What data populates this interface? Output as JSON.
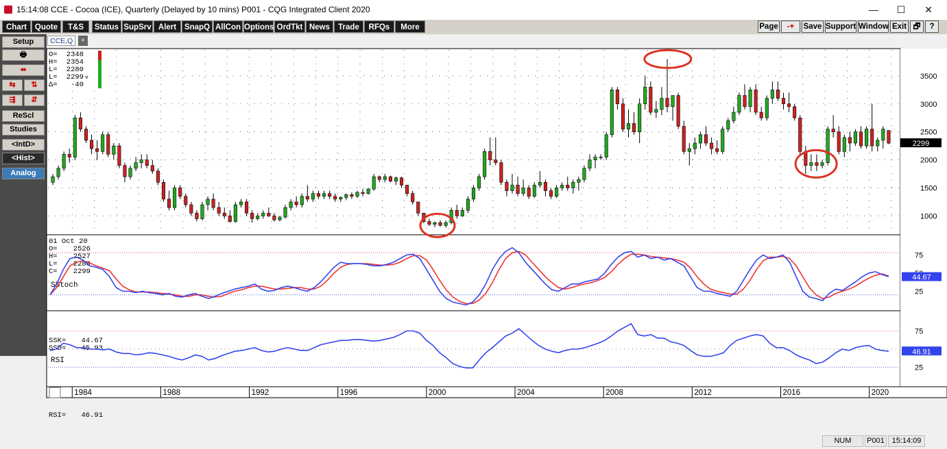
{
  "window": {
    "title": "15:14:08   CCE - Cocoa (ICE), Quarterly (Delayed by 10 mins)   P001 - CQG Integrated Client 2020",
    "minimize": "—",
    "maximize": "☐",
    "close": "✕"
  },
  "menu": {
    "left": [
      "Chart",
      "Quote",
      "T&S",
      "Status",
      "SupSrv",
      "Alert",
      "SnapQ",
      "AllCon",
      "Options",
      "OrdTkt",
      "News",
      "Trade",
      "RFQs",
      "More"
    ],
    "right": [
      "Page",
      "-+",
      "Save",
      "Support",
      "Window",
      "Exit",
      "🗗",
      "?"
    ]
  },
  "sidebar": {
    "setup": "Setup",
    "print_icon": "printer-icon",
    "rescl": "ReScl",
    "studies": "Studies",
    "intd": "<IntD>",
    "hist": "<Hist>",
    "analog": "Analog"
  },
  "tabs": {
    "active": "CCE,Q",
    "add": "+"
  },
  "price_box": {
    "labels": [
      "O=",
      "H=",
      "L=",
      "L=",
      "Δ="
    ],
    "values": [
      "2348",
      "2354",
      "2280",
      "2299",
      "-40"
    ],
    "suffix": "v"
  },
  "cursor_box": {
    "date": "01 Oct 20",
    "labels": [
      "O=",
      "H=",
      "L=",
      "C="
    ],
    "values": [
      "2526",
      "2527",
      "2280",
      "2299"
    ]
  },
  "price_axis": {
    "ticks": [
      "3500",
      "3000",
      "2500",
      "2000",
      "1500",
      "1000"
    ],
    "current": "2299"
  },
  "sstoch": {
    "title": "SStoch",
    "ticks": [
      "75",
      "50",
      "25"
    ],
    "current": "44.67",
    "readout_labels": [
      "SSK=",
      "SSD="
    ],
    "readout_values": [
      "44.67",
      "45.93"
    ]
  },
  "rsi": {
    "title": "RSI",
    "ticks": [
      "75",
      "50",
      "25"
    ],
    "current": "46.91",
    "readout_label": "RSI=",
    "readout_value": "46.91"
  },
  "time_axis": [
    "1984",
    "1988",
    "1992",
    "1996",
    "2000",
    "2004",
    "2008",
    "2012",
    "2016",
    "2020"
  ],
  "status": {
    "num": "NUM",
    "page": "P001",
    "time": "15:14:09"
  },
  "colors": {
    "up": "#22aa22",
    "down": "#cc2222",
    "stoch_fast": "#3344ee",
    "stoch_slow": "#ee3333",
    "highlight": "#dd3322"
  },
  "chart_data": {
    "type": "candlestick",
    "price_ylim": [
      700,
      3950
    ],
    "x_range": [
      1983.0,
      2021.25
    ],
    "candles": [
      [
        1983.0,
        1600,
        1750,
        1550,
        1700
      ],
      [
        1983.25,
        1700,
        1900,
        1650,
        1850
      ],
      [
        1983.5,
        1850,
        2150,
        1800,
        2100
      ],
      [
        1983.75,
        2100,
        2200,
        1950,
        2050
      ],
      [
        1984.0,
        2050,
        2800,
        2000,
        2750
      ],
      [
        1984.25,
        2750,
        2850,
        2500,
        2550
      ],
      [
        1984.5,
        2550,
        2600,
        2300,
        2350
      ],
      [
        1984.75,
        2350,
        2450,
        2100,
        2200
      ],
      [
        1985.0,
        2200,
        2350,
        2000,
        2150
      ],
      [
        1985.25,
        2150,
        2500,
        2100,
        2450
      ],
      [
        1985.5,
        2450,
        2500,
        2050,
        2100
      ],
      [
        1985.75,
        2100,
        2300,
        2000,
        2250
      ],
      [
        1986.0,
        2250,
        2300,
        1850,
        1900
      ],
      [
        1986.25,
        1900,
        1950,
        1600,
        1700
      ],
      [
        1986.5,
        1700,
        1900,
        1650,
        1850
      ],
      [
        1986.75,
        1850,
        2050,
        1800,
        1950
      ],
      [
        1987.0,
        1950,
        2100,
        1850,
        2000
      ],
      [
        1987.25,
        2000,
        2100,
        1850,
        1900
      ],
      [
        1987.5,
        1900,
        2000,
        1750,
        1800
      ],
      [
        1987.75,
        1800,
        1850,
        1550,
        1600
      ],
      [
        1988.0,
        1600,
        1650,
        1250,
        1300
      ],
      [
        1988.25,
        1300,
        1450,
        1100,
        1150
      ],
      [
        1988.5,
        1150,
        1550,
        1100,
        1500
      ],
      [
        1988.75,
        1500,
        1550,
        1300,
        1350
      ],
      [
        1989.0,
        1350,
        1400,
        1150,
        1200
      ],
      [
        1989.25,
        1200,
        1250,
        1000,
        1050
      ],
      [
        1989.5,
        1050,
        1100,
        900,
        950
      ],
      [
        1989.75,
        950,
        1250,
        920,
        1200
      ],
      [
        1990.0,
        1200,
        1350,
        1100,
        1300
      ],
      [
        1990.25,
        1300,
        1400,
        1100,
        1150
      ],
      [
        1990.5,
        1150,
        1250,
        1000,
        1050
      ],
      [
        1990.75,
        1050,
        1150,
        950,
        1000
      ],
      [
        1991.0,
        1000,
        1100,
        880,
        900
      ],
      [
        1991.25,
        900,
        1250,
        880,
        1200
      ],
      [
        1991.5,
        1200,
        1300,
        1150,
        1250
      ],
      [
        1991.75,
        1250,
        1300,
        1000,
        1050
      ],
      [
        1992.0,
        1050,
        1100,
        880,
        950
      ],
      [
        1992.25,
        950,
        1050,
        920,
        1000
      ],
      [
        1992.5,
        1000,
        1100,
        950,
        1050
      ],
      [
        1992.75,
        1050,
        1150,
        980,
        1000
      ],
      [
        1993.0,
        1000,
        1050,
        900,
        930
      ],
      [
        1993.25,
        930,
        1000,
        900,
        980
      ],
      [
        1993.5,
        980,
        1200,
        950,
        1150
      ],
      [
        1993.75,
        1150,
        1300,
        1100,
        1250
      ],
      [
        1994.0,
        1250,
        1350,
        1150,
        1200
      ],
      [
        1994.25,
        1200,
        1400,
        1150,
        1350
      ],
      [
        1994.5,
        1350,
        1550,
        1250,
        1300
      ],
      [
        1994.75,
        1300,
        1450,
        1250,
        1400
      ],
      [
        1995.0,
        1400,
        1450,
        1300,
        1350
      ],
      [
        1995.25,
        1350,
        1450,
        1300,
        1400
      ],
      [
        1995.5,
        1400,
        1450,
        1300,
        1350
      ],
      [
        1995.75,
        1350,
        1400,
        1250,
        1300
      ],
      [
        1996.0,
        1300,
        1350,
        1250,
        1330
      ],
      [
        1996.25,
        1330,
        1400,
        1280,
        1380
      ],
      [
        1996.5,
        1380,
        1420,
        1300,
        1350
      ],
      [
        1996.75,
        1350,
        1450,
        1320,
        1420
      ],
      [
        1997.0,
        1420,
        1480,
        1350,
        1400
      ],
      [
        1997.25,
        1400,
        1500,
        1380,
        1480
      ],
      [
        1997.5,
        1480,
        1750,
        1450,
        1700
      ],
      [
        1997.75,
        1700,
        1720,
        1600,
        1650
      ],
      [
        1998.0,
        1650,
        1750,
        1600,
        1700
      ],
      [
        1998.25,
        1700,
        1720,
        1600,
        1620
      ],
      [
        1998.5,
        1620,
        1700,
        1550,
        1680
      ],
      [
        1998.75,
        1680,
        1700,
        1500,
        1550
      ],
      [
        1999.0,
        1550,
        1550,
        1350,
        1400
      ],
      [
        1999.25,
        1400,
        1450,
        1200,
        1250
      ],
      [
        1999.5,
        1250,
        1250,
        1000,
        1050
      ],
      [
        1999.75,
        1050,
        1050,
        870,
        900
      ],
      [
        2000.0,
        900,
        950,
        820,
        850
      ],
      [
        2000.25,
        850,
        900,
        800,
        880
      ],
      [
        2000.5,
        880,
        920,
        810,
        830
      ],
      [
        2000.75,
        830,
        920,
        790,
        880
      ],
      [
        2001.0,
        880,
        1150,
        850,
        1100
      ],
      [
        2001.25,
        1100,
        1200,
        950,
        1000
      ],
      [
        2001.5,
        1000,
        1150,
        980,
        1100
      ],
      [
        2001.75,
        1100,
        1350,
        1050,
        1300
      ],
      [
        2002.0,
        1300,
        1550,
        1250,
        1500
      ],
      [
        2002.25,
        1500,
        1750,
        1450,
        1700
      ],
      [
        2002.5,
        1700,
        2200,
        1650,
        2150
      ],
      [
        2002.75,
        2150,
        2400,
        1900,
        2000
      ],
      [
        2003.0,
        2000,
        2400,
        1900,
        1950
      ],
      [
        2003.25,
        1950,
        2000,
        1550,
        1600
      ],
      [
        2003.5,
        1600,
        1650,
        1350,
        1450
      ],
      [
        2003.75,
        1450,
        1750,
        1400,
        1550
      ],
      [
        2004.0,
        1550,
        1700,
        1350,
        1400
      ],
      [
        2004.25,
        1400,
        1650,
        1350,
        1500
      ],
      [
        2004.5,
        1500,
        1550,
        1300,
        1350
      ],
      [
        2004.75,
        1350,
        1600,
        1320,
        1550
      ],
      [
        2005.0,
        1550,
        1800,
        1500,
        1600
      ],
      [
        2005.25,
        1600,
        1650,
        1350,
        1450
      ],
      [
        2005.5,
        1450,
        1500,
        1300,
        1350
      ],
      [
        2005.75,
        1350,
        1550,
        1320,
        1500
      ],
      [
        2006.0,
        1500,
        1600,
        1450,
        1550
      ],
      [
        2006.25,
        1550,
        1700,
        1450,
        1500
      ],
      [
        2006.5,
        1500,
        1650,
        1400,
        1600
      ],
      [
        2006.75,
        1600,
        1700,
        1450,
        1650
      ],
      [
        2007.0,
        1650,
        1900,
        1600,
        1850
      ],
      [
        2007.25,
        1850,
        2100,
        1800,
        2000
      ],
      [
        2007.5,
        2000,
        2100,
        1850,
        2050
      ],
      [
        2007.75,
        2050,
        2100,
        2000,
        2050
      ],
      [
        2008.0,
        2050,
        2500,
        2000,
        2450
      ],
      [
        2008.25,
        2450,
        3300,
        2400,
        3250
      ],
      [
        2008.5,
        3250,
        3300,
        2900,
        3000
      ],
      [
        2008.75,
        3000,
        3100,
        2500,
        2550
      ],
      [
        2009.0,
        2550,
        2900,
        2400,
        2650
      ],
      [
        2009.25,
        2650,
        2850,
        2450,
        2500
      ],
      [
        2009.5,
        2500,
        3100,
        2300,
        3000
      ],
      [
        2009.75,
        3000,
        3500,
        2900,
        3300
      ],
      [
        2010.0,
        3300,
        3400,
        2800,
        2850
      ],
      [
        2010.25,
        2850,
        3050,
        2750,
        2900
      ],
      [
        2010.5,
        2900,
        3300,
        2800,
        3100
      ],
      [
        2010.75,
        3100,
        3800,
        2850,
        2950
      ],
      [
        2011.0,
        2950,
        3150,
        2700,
        3150
      ],
      [
        2011.25,
        3150,
        3200,
        2550,
        2600
      ],
      [
        2011.5,
        2600,
        2700,
        2100,
        2150
      ],
      [
        2011.75,
        2150,
        2300,
        1900,
        2200
      ],
      [
        2012.0,
        2200,
        2400,
        2100,
        2300
      ],
      [
        2012.25,
        2300,
        2500,
        2200,
        2450
      ],
      [
        2012.5,
        2450,
        2600,
        2250,
        2300
      ],
      [
        2012.75,
        2300,
        2400,
        2100,
        2200
      ],
      [
        2013.0,
        2200,
        2350,
        2100,
        2150
      ],
      [
        2013.25,
        2150,
        2600,
        2100,
        2550
      ],
      [
        2013.5,
        2550,
        2750,
        2500,
        2700
      ],
      [
        2013.75,
        2700,
        2950,
        2650,
        2850
      ],
      [
        2014.0,
        2850,
        3200,
        2800,
        3150
      ],
      [
        2014.25,
        3150,
        3350,
        2900,
        2950
      ],
      [
        2014.5,
        2950,
        3300,
        2850,
        3250
      ],
      [
        2014.75,
        3250,
        3350,
        2800,
        2850
      ],
      [
        2015.0,
        2850,
        2950,
        2700,
        2750
      ],
      [
        2015.25,
        2750,
        3150,
        2700,
        3100
      ],
      [
        2015.5,
        3100,
        3400,
        3000,
        3250
      ],
      [
        2015.75,
        3250,
        3400,
        3050,
        3100
      ],
      [
        2016.0,
        3100,
        3200,
        2900,
        3000
      ],
      [
        2016.25,
        3000,
        3200,
        2850,
        2950
      ],
      [
        2016.5,
        2950,
        3000,
        2700,
        2750
      ],
      [
        2016.75,
        2750,
        2800,
        2100,
        2150
      ],
      [
        2017.0,
        2150,
        2250,
        1750,
        1900
      ],
      [
        2017.25,
        1900,
        2100,
        1800,
        1950
      ],
      [
        2017.5,
        1950,
        2100,
        1800,
        1900
      ],
      [
        2017.75,
        1900,
        2000,
        1850,
        1950
      ],
      [
        2018.0,
        1950,
        2600,
        1900,
        2550
      ],
      [
        2018.25,
        2550,
        2800,
        2400,
        2500
      ],
      [
        2018.5,
        2500,
        2600,
        2100,
        2150
      ],
      [
        2018.75,
        2150,
        2450,
        2050,
        2400
      ],
      [
        2019.0,
        2400,
        2500,
        2150,
        2300
      ],
      [
        2019.25,
        2300,
        2550,
        2250,
        2500
      ],
      [
        2019.5,
        2500,
        2600,
        2200,
        2250
      ],
      [
        2019.75,
        2250,
        2600,
        2200,
        2550
      ],
      [
        2020.0,
        2550,
        3000,
        2150,
        2250
      ],
      [
        2020.25,
        2250,
        2400,
        2150,
        2350
      ],
      [
        2020.5,
        2350,
        2600,
        2200,
        2550
      ],
      [
        2020.75,
        2526,
        2527,
        2280,
        2299
      ]
    ],
    "sstoch_k": [
      20,
      35,
      55,
      70,
      72,
      68,
      60,
      58,
      55,
      45,
      30,
      25,
      25,
      23,
      25,
      23,
      22,
      20,
      22,
      18,
      17,
      20,
      22,
      18,
      15,
      18,
      22,
      25,
      28,
      30,
      32,
      35,
      28,
      25,
      26,
      30,
      32,
      30,
      27,
      25,
      30,
      38,
      48,
      58,
      65,
      63,
      63,
      63,
      62,
      60,
      60,
      62,
      65,
      70,
      75,
      76,
      70,
      55,
      40,
      25,
      15,
      10,
      8,
      6,
      10,
      20,
      35,
      55,
      70,
      80,
      85,
      78,
      65,
      55,
      45,
      35,
      27,
      25,
      30,
      35,
      35,
      38,
      40,
      42,
      50,
      62,
      72,
      78,
      80,
      72,
      75,
      70,
      72,
      68,
      70,
      65,
      60,
      45,
      30,
      25,
      25,
      22,
      20,
      18,
      25,
      40,
      55,
      68,
      75,
      70,
      72,
      75,
      65,
      45,
      25,
      17,
      15,
      12,
      22,
      28,
      26,
      32,
      38,
      45,
      50,
      52,
      48,
      45
    ],
    "sstoch_d": [
      20,
      30,
      45,
      60,
      65,
      67,
      64,
      60,
      57,
      53,
      42,
      32,
      27,
      24,
      24,
      24,
      23,
      22,
      21,
      20,
      18,
      18,
      20,
      20,
      18,
      17,
      18,
      22,
      25,
      27,
      30,
      32,
      32,
      30,
      28,
      28,
      29,
      30,
      30,
      28,
      28,
      32,
      40,
      50,
      58,
      62,
      63,
      63,
      63,
      62,
      61,
      61,
      62,
      65,
      70,
      74,
      74,
      68,
      55,
      40,
      27,
      17,
      11,
      8,
      8,
      13,
      22,
      37,
      55,
      70,
      78,
      80,
      75,
      65,
      55,
      45,
      37,
      30,
      28,
      30,
      33,
      35,
      37,
      40,
      44,
      52,
      62,
      70,
      76,
      76,
      75,
      73,
      72,
      71,
      70,
      68,
      65,
      57,
      45,
      35,
      28,
      25,
      23,
      21,
      21,
      28,
      40,
      55,
      67,
      72,
      72,
      73,
      70,
      60,
      45,
      30,
      20,
      15,
      17,
      22,
      25,
      28,
      32,
      38,
      43,
      47,
      49,
      46
    ],
    "rsi": [
      48,
      50,
      58,
      56,
      52,
      52,
      50,
      50,
      49,
      50,
      46,
      44,
      44,
      42,
      43,
      45,
      44,
      42,
      40,
      37,
      35,
      38,
      42,
      40,
      35,
      37,
      41,
      44,
      47,
      48,
      50,
      52,
      48,
      46,
      47,
      50,
      52,
      50,
      48,
      48,
      52,
      56,
      58,
      60,
      62,
      62,
      63,
      63,
      62,
      61,
      62,
      64,
      66,
      70,
      75,
      75,
      72,
      62,
      55,
      45,
      38,
      30,
      26,
      24,
      24,
      35,
      45,
      52,
      60,
      68,
      72,
      78,
      70,
      62,
      55,
      50,
      47,
      45,
      48,
      50,
      50,
      52,
      55,
      58,
      62,
      68,
      75,
      80,
      85,
      70,
      68,
      70,
      65,
      65,
      60,
      58,
      55,
      48,
      42,
      40,
      40,
      42,
      45,
      55,
      62,
      65,
      68,
      70,
      68,
      58,
      52,
      52,
      48,
      42,
      38,
      35,
      30,
      32,
      38,
      45,
      50,
      48,
      52,
      54,
      55,
      50,
      48,
      47
    ]
  }
}
